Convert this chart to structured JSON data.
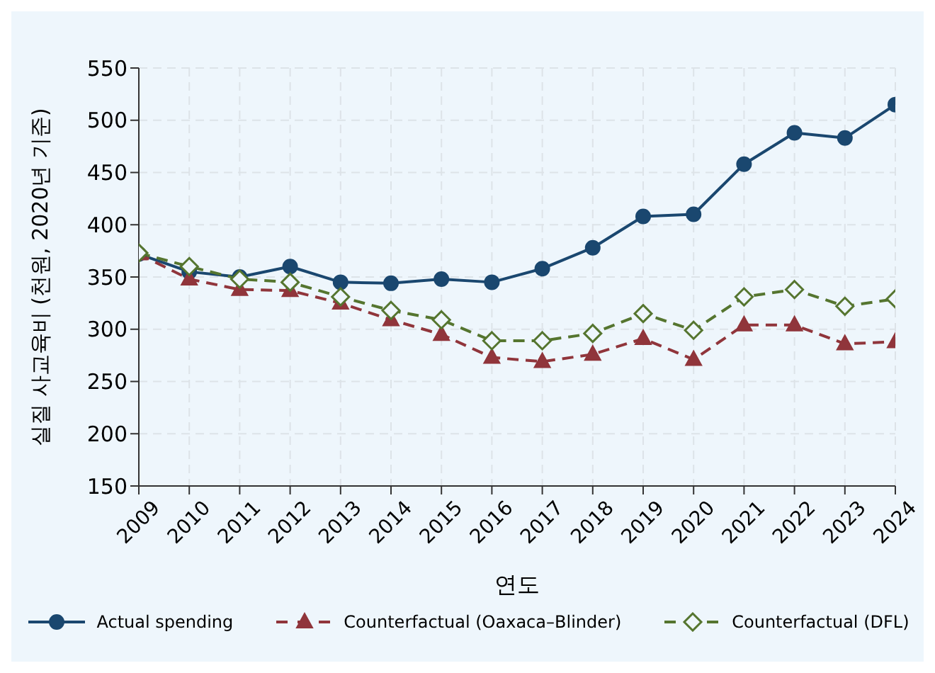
{
  "chart_data": {
    "type": "line",
    "xlabel": "연도",
    "ylabel": "실질 사교육비 (천원, 2020년 기준)",
    "x": [
      2009,
      2010,
      2011,
      2012,
      2013,
      2014,
      2015,
      2016,
      2017,
      2018,
      2019,
      2020,
      2021,
      2022,
      2023,
      2024
    ],
    "series": [
      {
        "name": "Actual spending",
        "color": "#1a476f",
        "marker": "circle",
        "line_style": "solid",
        "values": [
          372,
          355,
          350,
          360,
          345,
          344,
          348,
          345,
          358,
          378,
          408,
          410,
          458,
          488,
          483,
          515
        ]
      },
      {
        "name": "Counterfactual (Oaxaca–Blinder)",
        "color": "#90353b",
        "marker": "triangle",
        "line_style": "dashed",
        "values": [
          372,
          348,
          338,
          337,
          325,
          309,
          295,
          273,
          269,
          276,
          291,
          271,
          304,
          304,
          286,
          288
        ]
      },
      {
        "name": "Counterfactual (DFL)",
        "color": "#55752f",
        "marker": "diamond",
        "line_style": "dashed",
        "values": [
          373,
          360,
          348,
          345,
          331,
          318,
          309,
          289,
          289,
          296,
          315,
          299,
          331,
          338,
          322,
          329
        ]
      }
    ],
    "xlim": [
      2009,
      2024
    ],
    "xticks": [
      2009,
      2010,
      2011,
      2012,
      2013,
      2014,
      2015,
      2016,
      2017,
      2018,
      2019,
      2020,
      2021,
      2022,
      2023,
      2024
    ],
    "ylim": [
      150,
      550
    ],
    "yticks": [
      150,
      200,
      250,
      300,
      350,
      400,
      450,
      500,
      550
    ],
    "grid": true,
    "legend": "bottom"
  }
}
